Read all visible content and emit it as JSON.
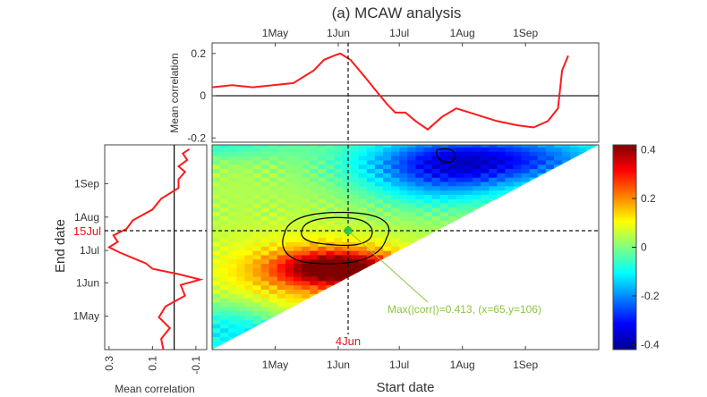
{
  "figure": {
    "title": "(a) MCAW analysis",
    "top_ylabel": "Mean correlation",
    "left_xlabel": "Mean correlation",
    "main_xlabel": "Start date",
    "main_ylabel": "End date",
    "highlight_end_label": "15Jul",
    "highlight_start_label": "4Jun",
    "max_annotation": "Max(|corr|)=0.413, (x=65,y=106)",
    "colors": {
      "highlight": "#e8141c",
      "annotation": "#8cc63f",
      "max_marker": "#28c840",
      "series": "#ff1a1a"
    }
  },
  "chart_data": [
    {
      "type": "heatmap",
      "name": "mcaw_heatmap",
      "x_axis": {
        "label": "Start date",
        "ticks": [
          "1May",
          "1Jun",
          "1Jul",
          "1Aug",
          "1Sep"
        ],
        "tick_days": [
          31,
          62,
          92,
          123,
          154
        ]
      },
      "y_axis": {
        "label": "End date",
        "ticks": [
          "1May",
          "1Jun",
          "1Jul",
          "1Aug",
          "1Sep"
        ],
        "tick_days": [
          31,
          62,
          92,
          123,
          154
        ]
      },
      "domain_days": [
        0,
        190
      ],
      "valid_region": "end date >= start date (upper-left triangle)",
      "colorbar": {
        "ticks": [
          0.4,
          0.2,
          0,
          -0.2,
          -0.4
        ],
        "range": [
          -0.42,
          0.42
        ],
        "colormap": "jet"
      },
      "max": {
        "value": 0.413,
        "start": "4Jun",
        "end": "15Jul"
      },
      "contour_levels": [
        0.25,
        0.35
      ]
    },
    {
      "type": "line",
      "name": "top_mean_correlation",
      "xlabel": "",
      "ylabel": "Mean correlation",
      "x_ticks": [
        "1May",
        "1Jun",
        "1Jul",
        "1Aug",
        "1Sep"
      ],
      "y_ticks": [
        0.2,
        0,
        -0.2
      ],
      "ylim": [
        -0.22,
        0.25
      ],
      "x": [
        0,
        10,
        20,
        30,
        40,
        50,
        55,
        60,
        63,
        68,
        75,
        80,
        86,
        90,
        95,
        100,
        106,
        113,
        120,
        130,
        140,
        150,
        158,
        165,
        170,
        172,
        175
      ],
      "values": [
        0.04,
        0.05,
        0.04,
        0.05,
        0.06,
        0.12,
        0.17,
        0.19,
        0.2,
        0.17,
        0.09,
        0.03,
        -0.04,
        -0.08,
        -0.08,
        -0.12,
        -0.16,
        -0.1,
        -0.06,
        -0.09,
        -0.12,
        -0.14,
        -0.15,
        -0.12,
        -0.06,
        0.12,
        0.19
      ]
    },
    {
      "type": "line",
      "name": "left_mean_correlation",
      "xlabel": "Mean correlation",
      "ylabel": "",
      "x_ticks": [
        0.3,
        0.1,
        -0.1
      ],
      "xlim": [
        0.32,
        -0.15
      ],
      "y_ticks": [
        "1May",
        "1Jun",
        "1Jul",
        "1Aug",
        "1Sep"
      ],
      "y": [
        0,
        10,
        20,
        30,
        40,
        50,
        60,
        65,
        70,
        75,
        80,
        85,
        90,
        95,
        100,
        106,
        112,
        120,
        130,
        140,
        150,
        158,
        165,
        170,
        176,
        182,
        186
      ],
      "values": [
        0.05,
        0.06,
        0.02,
        0.07,
        0.04,
        -0.05,
        -0.03,
        -0.12,
        -0.02,
        0.1,
        0.13,
        0.19,
        0.25,
        0.3,
        0.26,
        0.28,
        0.22,
        0.19,
        0.1,
        0.06,
        -0.02,
        -0.02,
        -0.05,
        -0.02,
        -0.06,
        -0.04,
        -0.07
      ]
    }
  ]
}
